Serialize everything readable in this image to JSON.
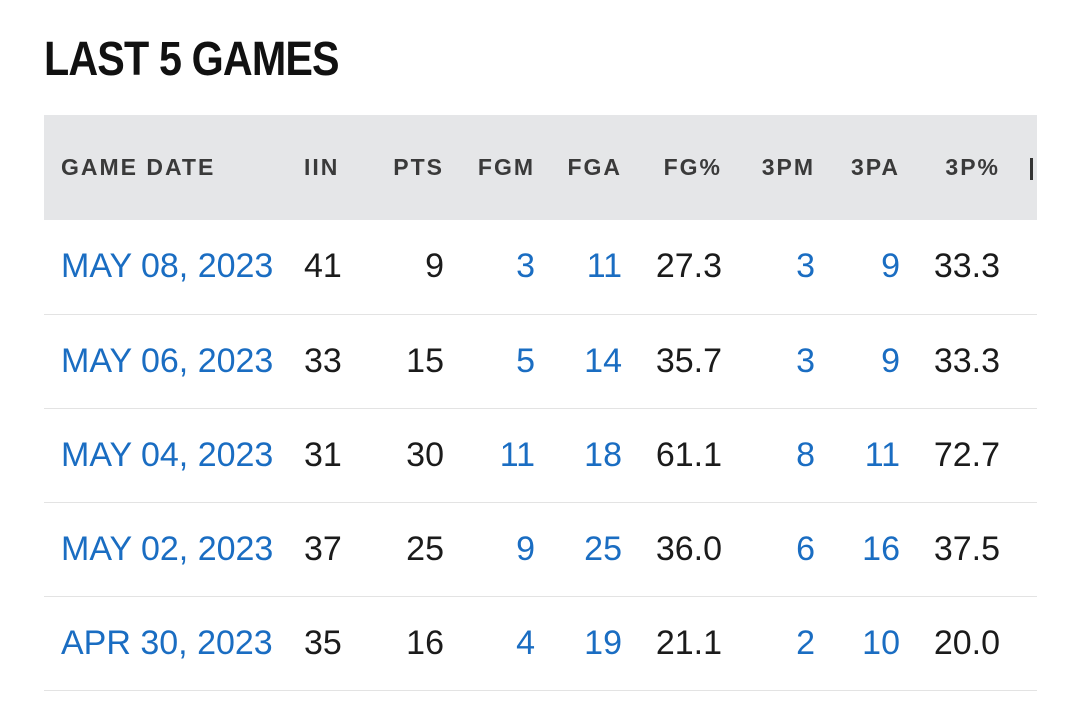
{
  "title": "LAST 5 GAMES",
  "columns": [
    "GAME DATE",
    "IIN",
    "PTS",
    "FGM",
    "FGA",
    "FG%",
    "3PM",
    "3PA",
    "3P%"
  ],
  "rows": [
    {
      "date": "MAY 08, 2023",
      "min": "41",
      "pts": "9",
      "fgm": "3",
      "fga": "11",
      "fg_pct": "27.3",
      "tpm": "3",
      "tpa": "9",
      "tp_pct": "33.3"
    },
    {
      "date": "MAY 06, 2023",
      "min": "33",
      "pts": "15",
      "fgm": "5",
      "fga": "14",
      "fg_pct": "35.7",
      "tpm": "3",
      "tpa": "9",
      "tp_pct": "33.3"
    },
    {
      "date": "MAY 04, 2023",
      "min": "31",
      "pts": "30",
      "fgm": "11",
      "fga": "18",
      "fg_pct": "61.1",
      "tpm": "8",
      "tpa": "11",
      "tp_pct": "72.7"
    },
    {
      "date": "MAY 02, 2023",
      "min": "37",
      "pts": "25",
      "fgm": "9",
      "fga": "25",
      "fg_pct": "36.0",
      "tpm": "6",
      "tpa": "16",
      "tp_pct": "37.5"
    },
    {
      "date": "APR 30, 2023",
      "min": "35",
      "pts": "16",
      "fgm": "4",
      "fga": "19",
      "fg_pct": "21.1",
      "tpm": "2",
      "tpa": "10",
      "tp_pct": "20.0"
    }
  ],
  "colors": {
    "link": "#1a6dc2",
    "header_bg": "#e5e6e8",
    "text": "#1b1b1b",
    "divider": "#e3e3e3"
  }
}
